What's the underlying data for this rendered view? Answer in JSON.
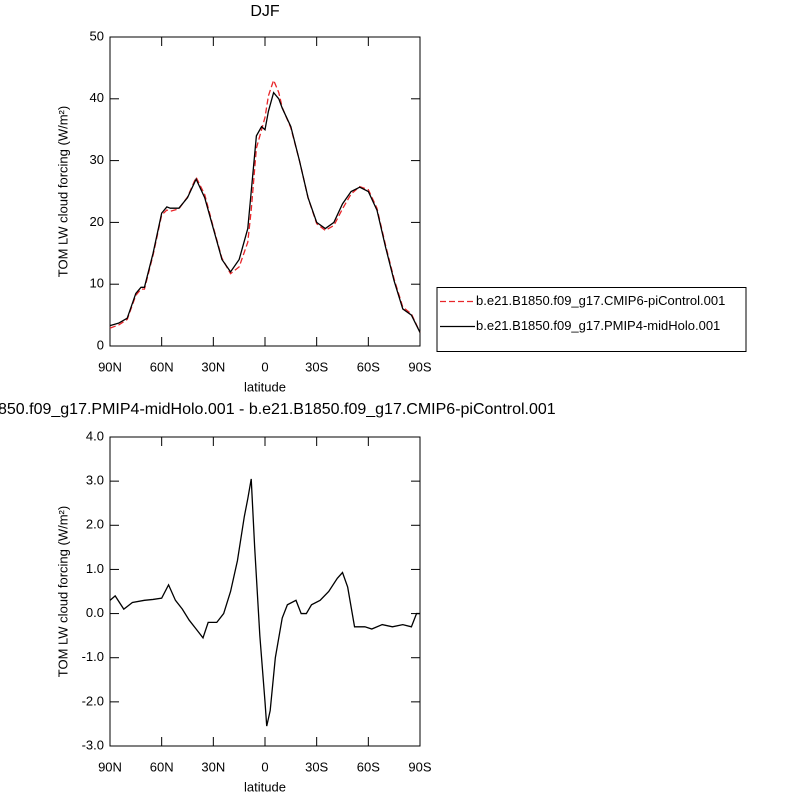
{
  "chart_data": [
    {
      "type": "line",
      "title": "DJF",
      "xlabel": "latitude",
      "ylabel": "TOM LW cloud forcing (W/m²)",
      "x": [
        90,
        85,
        80,
        75,
        72,
        70,
        65,
        60,
        57,
        55,
        50,
        45,
        40,
        35,
        30,
        25,
        20,
        15,
        10,
        8,
        5,
        2,
        0,
        -2,
        -5,
        -8,
        -10,
        -15,
        -20,
        -25,
        -30,
        -35,
        -40,
        -45,
        -50,
        -55,
        -60,
        -65,
        -70,
        -75,
        -80,
        -85,
        -90
      ],
      "series": [
        {
          "name": "b.e21.B1850.f09_g17.CMIP6-piControl.001",
          "color": "#e8262a",
          "dashed": true,
          "values": [
            2.9,
            3.4,
            4.3,
            8.2,
            9.2,
            9.2,
            14.7,
            21.2,
            22,
            21.8,
            22.2,
            24.1,
            27.3,
            24.5,
            19.2,
            14.2,
            11.7,
            12.8,
            16.8,
            22,
            32,
            35,
            37,
            40.5,
            43,
            41,
            38.6,
            35.3,
            30,
            24,
            19.8,
            18.7,
            19.5,
            22.2,
            24.6,
            25.8,
            25.3,
            22.3,
            16.3,
            10.8,
            6.3,
            5.2,
            2.2
          ]
        },
        {
          "name": "b.e21.B1850.f09_g17.PMIP4-midHolo.001",
          "color": "#000000",
          "dashed": false,
          "values": [
            3.3,
            3.7,
            4.5,
            8.5,
            9.5,
            9.5,
            15,
            21.5,
            22.5,
            22.3,
            22.3,
            24,
            27,
            24,
            19,
            14,
            12,
            14,
            19,
            25,
            34,
            35.5,
            35,
            38,
            41,
            40,
            38.5,
            35.5,
            30,
            24,
            20,
            19,
            20,
            23,
            25,
            25.7,
            25,
            22,
            16,
            10.5,
            6,
            5,
            2.2
          ]
        }
      ],
      "xlim": [
        90,
        -90
      ],
      "xticks": [
        {
          "value": 90,
          "label": "90N"
        },
        {
          "value": 60,
          "label": "60N"
        },
        {
          "value": 30,
          "label": "30N"
        },
        0,
        {
          "value": -30,
          "label": "30S"
        },
        {
          "value": -60,
          "label": "60S"
        },
        {
          "value": -90,
          "label": "90S"
        }
      ],
      "ylim": [
        0,
        50
      ],
      "yticks": [
        0,
        10,
        20,
        30,
        40,
        50
      ],
      "legend": "right"
    },
    {
      "type": "line",
      "title": "850.f09_g17.PMIP4-midHolo.001 - b.e21.B1850.f09_g17.CMIP6-piControl.001",
      "xlabel": "latitude",
      "ylabel": "TOM LW cloud forcing (W/m²)",
      "x": [
        90,
        87,
        82,
        77,
        70,
        65,
        60,
        56,
        52,
        48,
        44,
        40,
        36,
        33,
        28,
        24,
        20,
        16,
        12,
        10,
        8,
        6,
        3,
        0,
        -1,
        -3,
        -6,
        -10,
        -13,
        -18,
        -21,
        -24,
        -27,
        -32,
        -37,
        -42,
        -45,
        -48,
        -52,
        -58,
        -62,
        -68,
        -74,
        -80,
        -85,
        -88,
        -90
      ],
      "series": [
        {
          "color": "#000000",
          "dashed": false,
          "values": [
            0.3,
            0.4,
            0.1,
            0.25,
            0.3,
            0.32,
            0.35,
            0.65,
            0.3,
            0.1,
            -0.15,
            -0.35,
            -0.55,
            -0.2,
            -0.2,
            0,
            0.5,
            1.2,
            2.2,
            2.6,
            3.05,
            1.5,
            -0.5,
            -2,
            -2.55,
            -2.2,
            -1,
            -0.1,
            0.2,
            0.3,
            0,
            0,
            0.2,
            0.3,
            0.5,
            0.8,
            0.93,
            0.6,
            -0.3,
            -0.3,
            -0.35,
            -0.25,
            -0.3,
            -0.25,
            -0.3,
            0,
            0
          ]
        }
      ],
      "xlim": [
        90,
        -90
      ],
      "xticks": [
        {
          "value": 90,
          "label": "90N"
        },
        {
          "value": 60,
          "label": "60N"
        },
        {
          "value": 30,
          "label": "30N"
        },
        0,
        {
          "value": -30,
          "label": "30S"
        },
        {
          "value": -60,
          "label": "60S"
        },
        {
          "value": -90,
          "label": "90S"
        }
      ],
      "ylim": [
        -3,
        4
      ],
      "yticks": [
        {
          "value": -3,
          "label": "-3.0"
        },
        {
          "value": -2,
          "label": "-2.0"
        },
        {
          "value": -1,
          "label": "-1.0"
        },
        {
          "value": 0,
          "label": "0.0"
        },
        {
          "value": 1,
          "label": "1.0"
        },
        {
          "value": 2,
          "label": "2.0"
        },
        {
          "value": 3,
          "label": "3.0"
        },
        {
          "value": 4,
          "label": "4.0"
        }
      ]
    }
  ]
}
